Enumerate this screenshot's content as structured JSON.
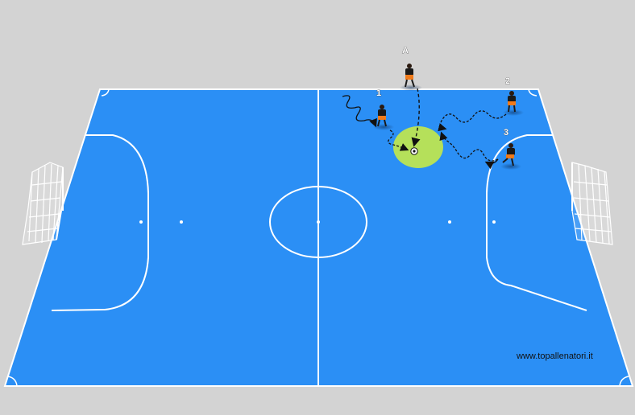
{
  "diagram": {
    "watermark": "www.topallenatori.it",
    "player_labels": [
      "A",
      "1",
      "2",
      "3"
    ],
    "colors": {
      "background": "#d3d3d3",
      "court": "#2b8ff5",
      "lines": "#ffffff",
      "zone": "#b5e05a",
      "player_shirt": "#1a1a1a",
      "player_shorts": "#f07a1a",
      "path": "#111111"
    }
  }
}
